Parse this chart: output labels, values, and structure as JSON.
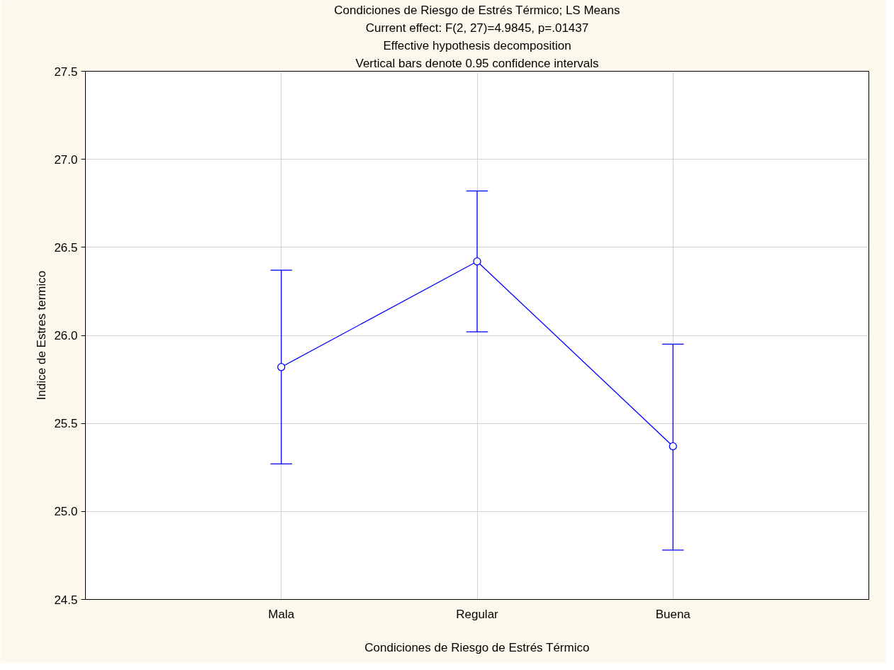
{
  "chart_data": {
    "type": "line",
    "title": "Condiciones de Riesgo de Estrés Térmico; LS Means",
    "subtitle": "Current effect: F(2, 27)=4.9845, p=.01437",
    "annotations": [
      "Effective hypothesis decomposition",
      "Vertical bars denote 0.95 confidence intervals"
    ],
    "xlabel": "Condiciones de Riesgo de Estrés Térmico",
    "ylabel": "Indice de Estres termico",
    "categories": [
      "Mala",
      "Regular",
      "Buena"
    ],
    "series": [
      {
        "color": "#0000ff",
        "values": [
          25.82,
          26.42,
          25.37
        ],
        "errors": [
          [
            25.27,
            26.37
          ],
          [
            26.02,
            26.82
          ],
          [
            24.78,
            25.95
          ]
        ]
      }
    ],
    "ylim": [
      24.5,
      27.5
    ],
    "yticks": [
      {
        "value": 24.5,
        "label": "24.5"
      },
      {
        "value": 25,
        "label": "25.0"
      },
      {
        "value": 25.5,
        "label": "25.5"
      },
      {
        "value": 26,
        "label": "26.0"
      },
      {
        "value": 26.5,
        "label": "26.5"
      },
      {
        "value": 27,
        "label": "27.0"
      },
      {
        "value": 27.5,
        "label": "27.5"
      }
    ],
    "grid": true,
    "marker": "circle",
    "line_style": "solid"
  }
}
